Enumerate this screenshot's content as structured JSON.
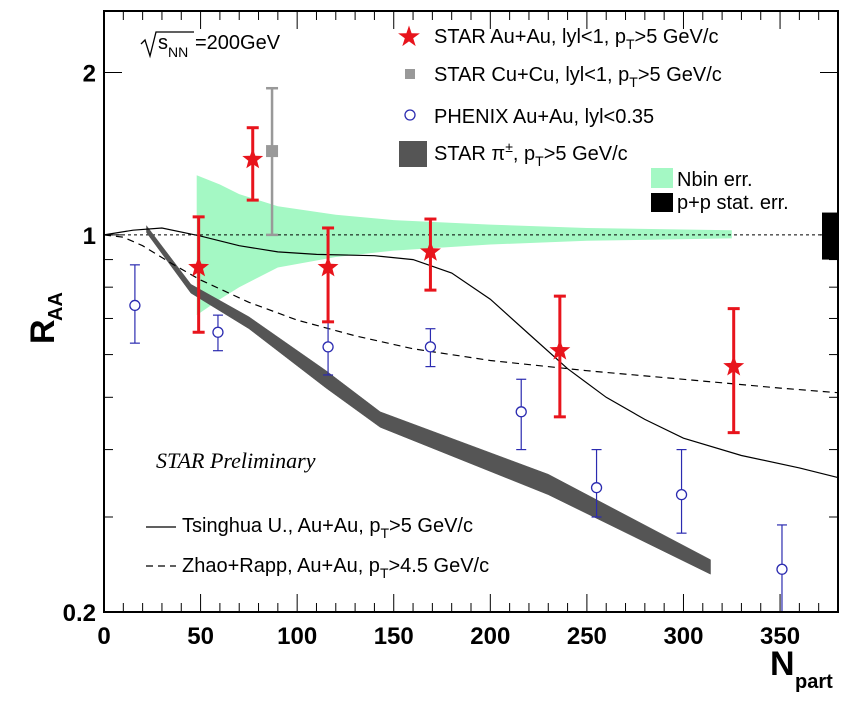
{
  "chart_data": {
    "type": "scatter",
    "energy_label": "s",
    "energy_sub": "NN",
    "energy_value": "=200GeV",
    "preliminary": "STAR Preliminary",
    "xlabel": "N",
    "xlabel_sub": "part",
    "ylabel": "R",
    "ylabel_sub": "AA",
    "xlim": [
      0,
      380
    ],
    "ylim": [
      0.2,
      2.6
    ],
    "y_scale": "log",
    "x_ticks": [
      "0",
      "50",
      "100",
      "150",
      "200",
      "250",
      "300",
      "350"
    ],
    "x_tick_values": [
      0,
      50,
      100,
      150,
      200,
      250,
      300,
      350
    ],
    "y_ticks": [
      "0.2",
      "1",
      "2"
    ],
    "y_tick_values": [
      0.2,
      1,
      2
    ],
    "legend": {
      "star_auau": {
        "main": "STAR Au+Au, lyl<1, p",
        "sub": "T",
        "rest": ">5 GeV/c"
      },
      "star_cucu": {
        "main": "STAR Cu+Cu, lyl<1, p",
        "sub": "T",
        "rest": ">5 GeV/c"
      },
      "phenix": {
        "main": "PHENIX Au+Au, lyl<0.35"
      },
      "star_pi": {
        "main": "STAR π",
        "sup": "±",
        "mid": ", p",
        "sub": "T",
        "rest": ">5 GeV/c"
      },
      "nbin": {
        "main": "Nbin err."
      },
      "pp": {
        "main": "p+p stat. err."
      },
      "tsinghua": {
        "main": "Tsinghua U., Au+Au, p",
        "sub": "T",
        "rest": ">5 GeV/c"
      },
      "zhao": {
        "main": "Zhao+Rapp, Au+Au, p",
        "sub": "T",
        "rest": ">4.5 GeV/c"
      }
    },
    "series": [
      {
        "name": "STAR Au+Au, lyl<1, pT>5 GeV/c",
        "color": "#e8141c",
        "marker": "star",
        "points": [
          [
            49,
            0.87,
            0.66,
            1.08
          ],
          [
            77,
            1.38,
            1.16,
            1.58
          ],
          [
            116,
            0.87,
            0.69,
            1.03
          ],
          [
            169,
            0.93,
            0.79,
            1.07
          ],
          [
            236,
            0.61,
            0.46,
            0.77
          ],
          [
            326,
            0.57,
            0.43,
            0.73
          ]
        ]
      },
      {
        "name": "STAR Cu+Cu, lyl<1, pT>5 GeV/c",
        "color": "#999999",
        "marker": "square",
        "points": [
          [
            87,
            1.43,
            1.0,
            1.87
          ]
        ]
      },
      {
        "name": "PHENIX Au+Au, lyl<0.35",
        "color": "#2b2bb0",
        "marker": "circle",
        "points": [
          [
            16,
            0.74,
            0.63,
            0.88
          ],
          [
            59,
            0.66,
            0.61,
            0.71
          ],
          [
            116,
            0.62,
            0.55,
            0.69
          ],
          [
            169,
            0.62,
            0.57,
            0.67
          ],
          [
            216,
            0.47,
            0.4,
            0.54
          ],
          [
            255,
            0.34,
            0.3,
            0.4
          ],
          [
            299,
            0.33,
            0.28,
            0.4
          ],
          [
            351,
            0.24,
            0.2,
            0.29
          ]
        ]
      },
      {
        "name": "STAR π±, pT>5 GeV/c",
        "color": "#555555",
        "marker": "band",
        "lower": [
          [
            22,
            1.01
          ],
          [
            45,
            0.78
          ],
          [
            75,
            0.67
          ],
          [
            115,
            0.52
          ],
          [
            143,
            0.44
          ],
          [
            230,
            0.33
          ],
          [
            314,
            0.235
          ]
        ],
        "upper": [
          [
            22,
            1.04
          ],
          [
            45,
            0.81
          ],
          [
            75,
            0.705
          ],
          [
            115,
            0.56
          ],
          [
            143,
            0.47
          ],
          [
            230,
            0.36
          ],
          [
            314,
            0.25
          ]
        ]
      },
      {
        "name": "Nbin err.",
        "color": "#a4f8c4",
        "marker": "band",
        "lower": [
          [
            48,
            0.71
          ],
          [
            60,
            0.76
          ],
          [
            70,
            0.8
          ],
          [
            90,
            0.87
          ],
          [
            120,
            0.91
          ],
          [
            150,
            0.935
          ],
          [
            200,
            0.96
          ],
          [
            250,
            0.975
          ],
          [
            325,
            0.985
          ]
        ],
        "upper": [
          [
            48,
            1.29
          ],
          [
            60,
            1.24
          ],
          [
            70,
            1.19
          ],
          [
            90,
            1.13
          ],
          [
            120,
            1.09
          ],
          [
            150,
            1.065
          ],
          [
            200,
            1.045
          ],
          [
            250,
            1.03
          ],
          [
            325,
            1.02
          ]
        ]
      },
      {
        "name": "Tsinghua U., Au+Au, pT>5 GeV/c",
        "color": "#000000",
        "marker": "line",
        "points": [
          [
            0,
            1.0
          ],
          [
            15,
            1.02
          ],
          [
            30,
            1.03
          ],
          [
            50,
            0.995
          ],
          [
            70,
            0.955
          ],
          [
            90,
            0.93
          ],
          [
            110,
            0.92
          ],
          [
            140,
            0.915
          ],
          [
            160,
            0.9
          ],
          [
            180,
            0.85
          ],
          [
            200,
            0.76
          ],
          [
            220,
            0.655
          ],
          [
            240,
            0.565
          ],
          [
            260,
            0.5
          ],
          [
            280,
            0.455
          ],
          [
            300,
            0.42
          ],
          [
            330,
            0.39
          ],
          [
            360,
            0.37
          ],
          [
            380,
            0.355
          ]
        ]
      },
      {
        "name": "Zhao+Rapp, Au+Au, pT>4.5 GeV/c",
        "color": "#000000",
        "marker": "dashed",
        "points": [
          [
            0,
            1.0
          ],
          [
            10,
            0.99
          ],
          [
            20,
            0.955
          ],
          [
            35,
            0.885
          ],
          [
            50,
            0.825
          ],
          [
            75,
            0.75
          ],
          [
            100,
            0.695
          ],
          [
            130,
            0.65
          ],
          [
            160,
            0.615
          ],
          [
            200,
            0.585
          ],
          [
            250,
            0.56
          ],
          [
            300,
            0.54
          ],
          [
            350,
            0.52
          ],
          [
            380,
            0.51
          ]
        ]
      }
    ],
    "pp_box": {
      "x": 380,
      "low": 0.9,
      "high": 1.1
    },
    "reference_line": 1.0
  }
}
